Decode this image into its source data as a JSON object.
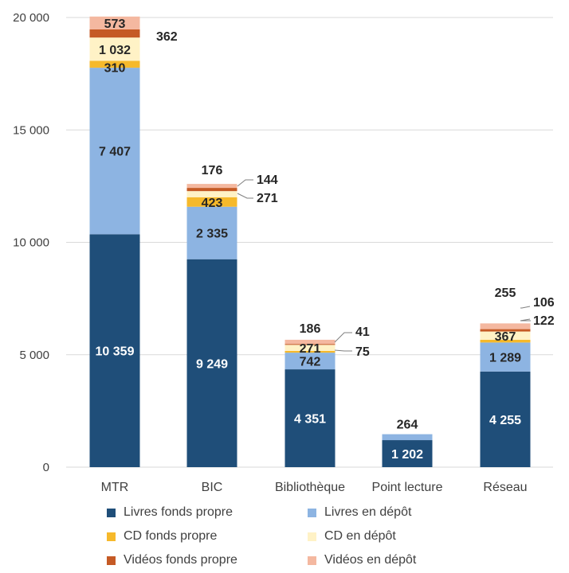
{
  "chart_data": {
    "type": "bar",
    "stacked": true,
    "categories": [
      "MTR",
      "BIC",
      "Bibliothèque",
      "Point lecture",
      "Réseau"
    ],
    "series": [
      {
        "name": "Livres fonds propre",
        "color": "#1f4e79",
        "values": [
          10359,
          9249,
          4351,
          1202,
          4255
        ],
        "labels": [
          "10 359",
          "9 249",
          "4 351",
          "1 202",
          "4 255"
        ]
      },
      {
        "name": "Livres en dépôt",
        "color": "#8db4e2",
        "values": [
          7407,
          2335,
          742,
          264,
          1289
        ],
        "labels": [
          "7 407",
          "2 335",
          "742",
          "264",
          "1 289"
        ]
      },
      {
        "name": "CD fonds propre",
        "color": "#f6b92b",
        "values": [
          310,
          423,
          75,
          0,
          122
        ],
        "labels": [
          "310",
          "423",
          "75",
          "",
          "122"
        ]
      },
      {
        "name": "CD en dépôt",
        "color": "#fff2c6",
        "values": [
          1032,
          271,
          271,
          0,
          367
        ],
        "labels": [
          "1 032",
          "271",
          "271",
          "",
          "367"
        ]
      },
      {
        "name": "Vidéos fonds propre",
        "color": "#c55a25",
        "values": [
          362,
          144,
          41,
          0,
          106
        ],
        "labels": [
          "362",
          "144",
          "41",
          "",
          "106"
        ]
      },
      {
        "name": "Vidéos en dépôt",
        "color": "#f4b8a0",
        "values": [
          573,
          176,
          186,
          0,
          255
        ],
        "labels": [
          "573",
          "176",
          "186",
          "",
          "255"
        ]
      }
    ],
    "yticks": [
      "0",
      "5 000",
      "10 000",
      "15 000",
      "20 000"
    ],
    "ylim": [
      0,
      20000
    ],
    "grid": true,
    "legend_position": "bottom"
  }
}
